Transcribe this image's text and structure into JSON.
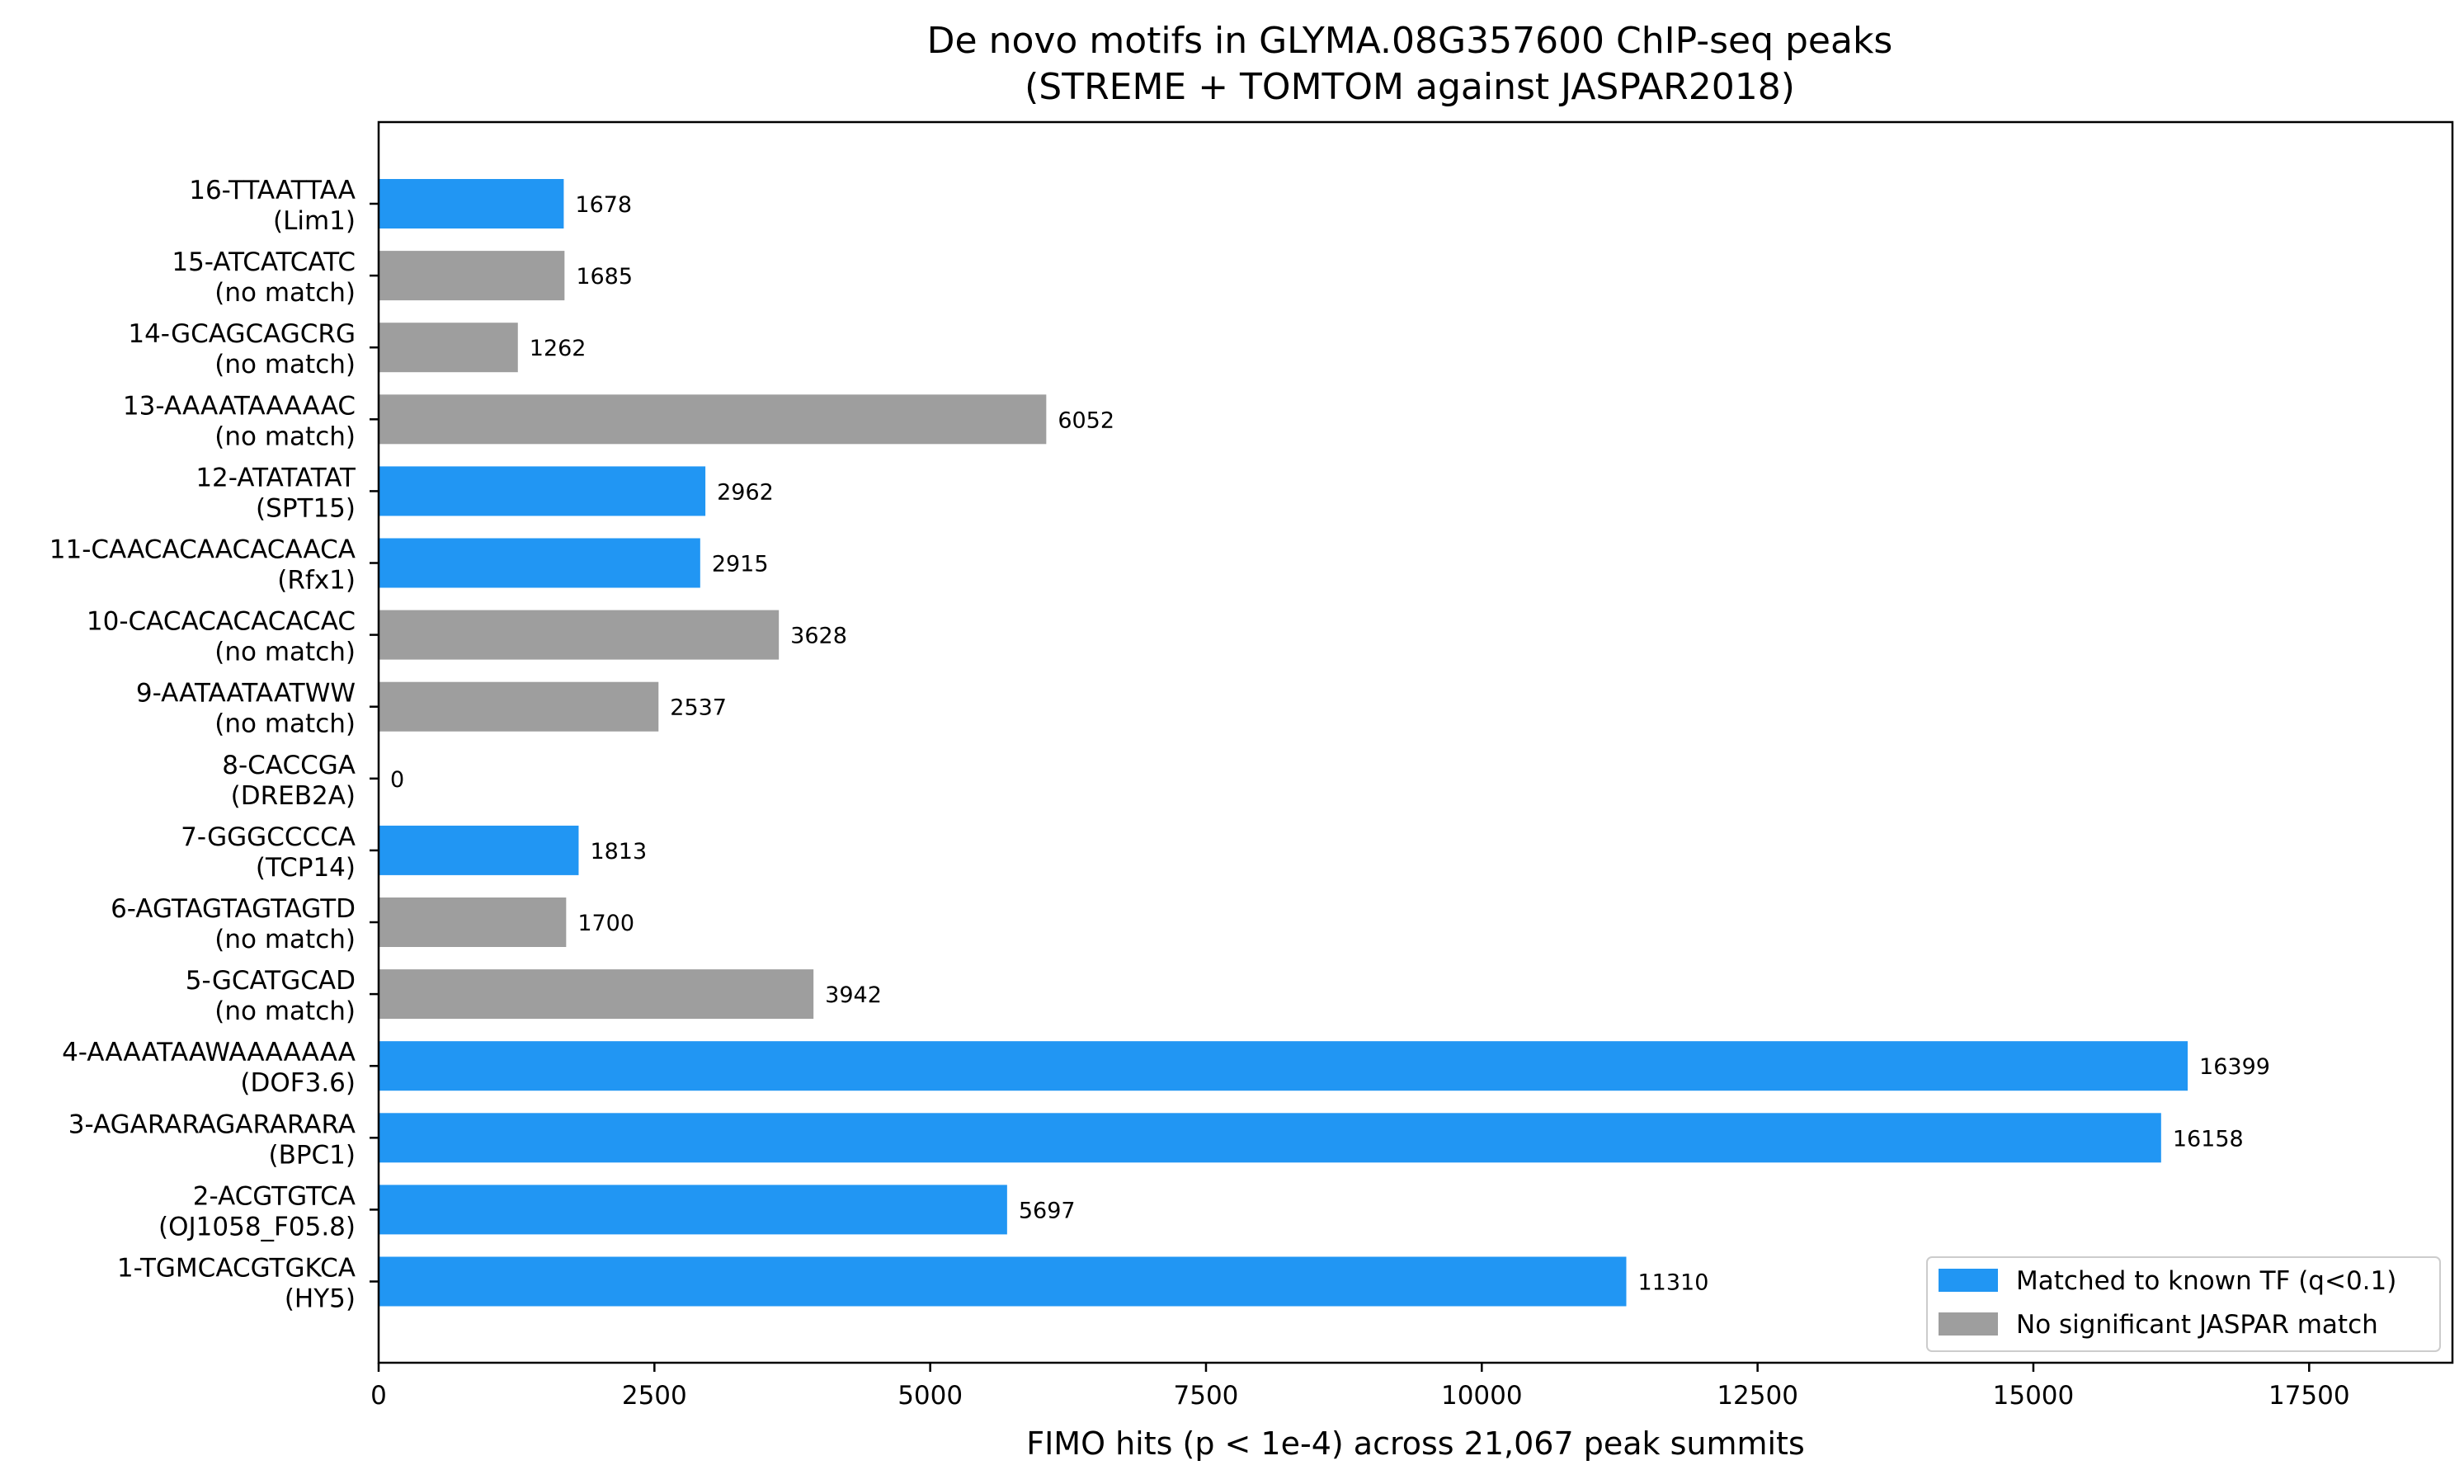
{
  "chart_data": {
    "type": "bar",
    "orientation": "horizontal",
    "title": "De novo motifs in GLYMA.08G357600 ChIP-seq peaks",
    "subtitle": "(STREME + TOMTOM against JASPAR2018)",
    "xlabel": "FIMO hits (p < 1e-4) across 21,067 peak summits",
    "ylabel": "",
    "xlim": [
      0,
      18799
    ],
    "xticks": [
      "0",
      "2500",
      "5000",
      "7500",
      "10000",
      "12500",
      "15000",
      "17500"
    ],
    "grid": false,
    "legend_position": "lower-right",
    "colors": {
      "matched": "#2196f3",
      "unmatched": "#9e9e9e"
    },
    "legend": [
      {
        "label": "Matched to known TF (q<0.1)",
        "key": "matched"
      },
      {
        "label": "No significant JASPAR match",
        "key": "unmatched"
      }
    ],
    "bars": [
      {
        "motif": "16-TTAATTAA",
        "match": "(Lim1)",
        "value": 1678,
        "value_label": "1678",
        "matched": true
      },
      {
        "motif": "15-ATCATCATC",
        "match": "(no match)",
        "value": 1685,
        "value_label": "1685",
        "matched": false
      },
      {
        "motif": "14-GCAGCAGCRG",
        "match": "(no match)",
        "value": 1262,
        "value_label": "1262",
        "matched": false
      },
      {
        "motif": "13-AAAATAAAAAC",
        "match": "(no match)",
        "value": 6052,
        "value_label": "6052",
        "matched": false
      },
      {
        "motif": "12-ATATATAT",
        "match": "(SPT15)",
        "value": 2962,
        "value_label": "2962",
        "matched": true
      },
      {
        "motif": "11-CAACACAACACAACA",
        "match": "(Rfx1)",
        "value": 2915,
        "value_label": "2915",
        "matched": true
      },
      {
        "motif": "10-CACACACACACAC",
        "match": "(no match)",
        "value": 3628,
        "value_label": "3628",
        "matched": false
      },
      {
        "motif": "9-AATAATAATWW",
        "match": "(no match)",
        "value": 2537,
        "value_label": "2537",
        "matched": false
      },
      {
        "motif": "8-CACCGA",
        "match": "(DREB2A)",
        "value": 0,
        "value_label": "0",
        "matched": true
      },
      {
        "motif": "7-GGGCCCCA",
        "match": "(TCP14)",
        "value": 1813,
        "value_label": "1813",
        "matched": true
      },
      {
        "motif": "6-AGTAGTAGTAGTD",
        "match": "(no match)",
        "value": 1700,
        "value_label": "1700",
        "matched": false
      },
      {
        "motif": "5-GCATGCAD",
        "match": "(no match)",
        "value": 3942,
        "value_label": "3942",
        "matched": false
      },
      {
        "motif": "4-AAAATAAWAAAAAAA",
        "match": "(DOF3.6)",
        "value": 16399,
        "value_label": "16399",
        "matched": true
      },
      {
        "motif": "3-AGARARAGARARARA",
        "match": "(BPC1)",
        "value": 16158,
        "value_label": "16158",
        "matched": true
      },
      {
        "motif": "2-ACGTGTCA",
        "match": "(OJ1058_F05.8)",
        "value": 5697,
        "value_label": "5697",
        "matched": true
      },
      {
        "motif": "1-TGMCACGTGKCA",
        "match": "(HY5)",
        "value": 11310,
        "value_label": "11310",
        "matched": true
      }
    ]
  }
}
